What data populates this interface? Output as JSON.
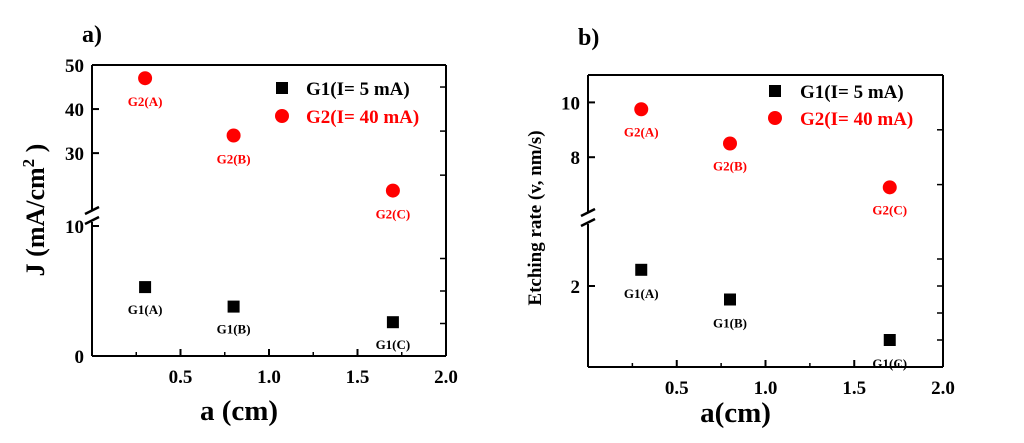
{
  "chart_data": [
    {
      "type": "scatter",
      "panel_label": "a)",
      "xlabel": "a (cm)",
      "ylabel_main": "J (mA/cm",
      "ylabel_sup": "2",
      "ylabel_end": " )",
      "xlim": [
        0,
        2.0
      ],
      "x_ticks": [
        "0.5",
        "1.0",
        "1.5",
        "2.0"
      ],
      "x_tick_values": [
        0.5,
        1.0,
        1.5,
        2.0
      ],
      "y_axis_broken": true,
      "y_lower": {
        "range": [
          0,
          10
        ],
        "ticks": [
          0,
          10
        ],
        "tick_labels": [
          "0",
          "10"
        ]
      },
      "y_upper": {
        "range": [
          18,
          50
        ],
        "ticks": [
          30,
          40,
          50
        ],
        "tick_labels": [
          "30",
          "40",
          "50"
        ]
      },
      "legend": {
        "placement": "top-right",
        "entries": [
          "G1(I= 5 mA)",
          "G2(I= 40 mA)"
        ]
      },
      "series": [
        {
          "name": "G1(I= 5 mA)",
          "marker": "square",
          "color": "#000000",
          "x": [
            0.3,
            0.8,
            1.7
          ],
          "y": [
            5.3,
            3.8,
            2.6
          ],
          "labels": [
            "G1(A)",
            "G1(B)",
            "G1(C)"
          ]
        },
        {
          "name": "G2(I= 40 mA)",
          "marker": "circle",
          "color": "#ff0000",
          "x": [
            0.3,
            0.8,
            1.7
          ],
          "y": [
            47,
            34,
            21.5
          ],
          "labels": [
            "G2(A)",
            "G2(B)",
            "G2(C)"
          ]
        }
      ]
    },
    {
      "type": "scatter",
      "panel_label": "b)",
      "xlabel": "a(cm)",
      "ylabel": "Etching rate (v, nm/s)",
      "xlim": [
        0,
        2.0
      ],
      "x_ticks": [
        "0.5",
        "1.0",
        "1.5",
        "2.0"
      ],
      "x_tick_values": [
        0.5,
        1.0,
        1.5,
        2.0
      ],
      "y_axis_broken": true,
      "y_lower": {
        "range": [
          0.5,
          3.0
        ],
        "ticks": [
          2
        ],
        "tick_labels": [
          "2"
        ]
      },
      "y_upper": {
        "range": [
          6.0,
          11.0
        ],
        "ticks": [
          8,
          10
        ],
        "tick_labels": [
          "8",
          "10"
        ]
      },
      "legend": {
        "placement": "top-right",
        "entries": [
          "G1(I= 5 mA)",
          "G2(I= 40 mA)"
        ]
      },
      "series": [
        {
          "name": "G1(I= 5 mA)",
          "marker": "square",
          "color": "#000000",
          "x": [
            0.3,
            0.8,
            1.7
          ],
          "y": [
            2.3,
            1.75,
            1.0
          ],
          "labels": [
            "G1(A)",
            "G1(B)",
            "G1(C)"
          ]
        },
        {
          "name": "G2(I= 40 mA)",
          "marker": "circle",
          "color": "#ff0000",
          "x": [
            0.3,
            0.8,
            1.7
          ],
          "y": [
            9.75,
            8.5,
            6.9
          ],
          "labels": [
            "G2(A)",
            "G2(B)",
            "G2(C)"
          ]
        }
      ]
    }
  ]
}
